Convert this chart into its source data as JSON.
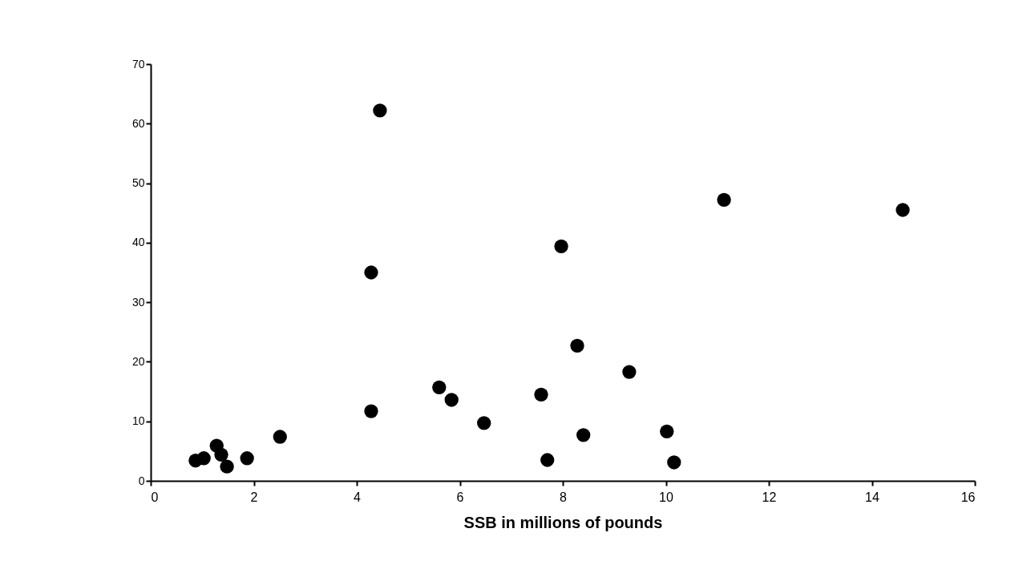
{
  "chart_data": {
    "type": "scatter",
    "xlabel": "SSB in millions of pounds",
    "x": [
      0.87,
      1.03,
      1.28,
      1.37,
      1.48,
      1.84,
      1.87,
      2.51,
      4.28,
      4.45,
      4.28,
      5.6,
      5.84,
      6.47,
      7.58,
      7.7,
      7.97,
      8.28,
      8.4,
      9.29,
      10.02,
      10.16,
      11.13,
      14.6
    ],
    "series": [
      {
        "color": "#000000",
        "values": [
          3.4,
          3.8,
          5.9,
          4.4,
          2.4,
          null,
          3.8,
          7.4,
          11.7,
          62.2,
          35.0,
          15.7,
          13.6,
          9.7,
          14.5,
          3.5,
          39.4,
          22.7,
          7.7,
          18.3,
          8.3,
          3.1,
          47.2,
          45.5
        ]
      }
    ],
    "xlim": [
      0,
      16
    ],
    "xticks": [
      0,
      2,
      4,
      6,
      8,
      10,
      12,
      14,
      16
    ],
    "ylim": [
      0,
      70
    ],
    "yticks": [
      0,
      10,
      20,
      30,
      40,
      50,
      60,
      70
    ],
    "grid": false,
    "legend": false,
    "marker": "circle"
  }
}
